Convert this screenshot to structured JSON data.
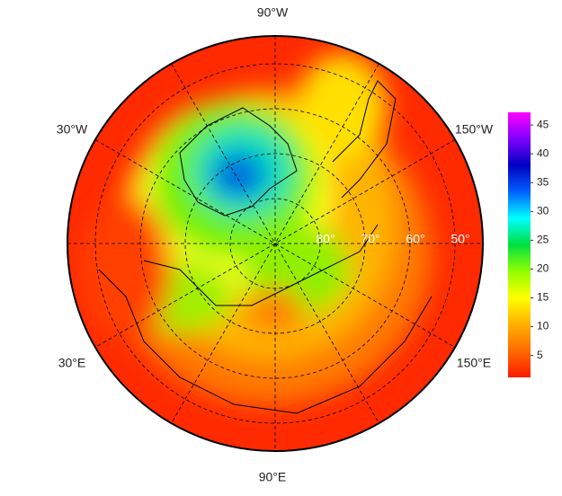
{
  "map": {
    "lon_labels": [
      "90°W",
      "30°W",
      "150°W",
      "30°E",
      "150°E",
      "90°E"
    ],
    "lat_labels": [
      "80°",
      "70°",
      "60°",
      "50°"
    ]
  },
  "colorbar": {
    "lim": [
      1.2,
      47.2
    ],
    "ticks": [
      5,
      10,
      15,
      20,
      25,
      30,
      35,
      40,
      45
    ],
    "colors": [
      "#ff1a00",
      "#ff6a00",
      "#ffb000",
      "#ffff00",
      "#90ff00",
      "#00e040",
      "#00ffff",
      "#0060ff",
      "#0000c0",
      "#8000ff",
      "#ff00ff"
    ]
  }
}
